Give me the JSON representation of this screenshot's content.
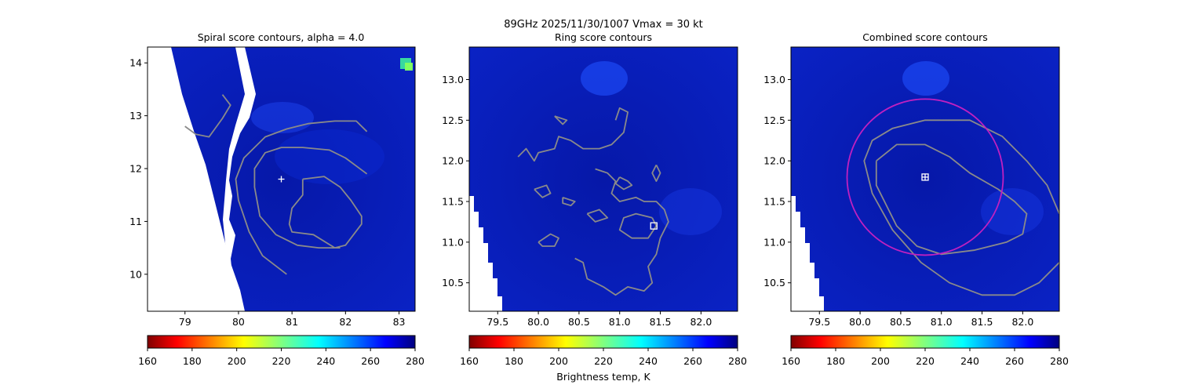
{
  "suptitle_line1": "89GHz  2025/11/30/1007    Vmax = 30 kt",
  "colorbar_label": "Brightness temp, K",
  "colors": {
    "background_field": "#0a1fc0",
    "field_dark": "#06129a",
    "field_light": "#1e4bff",
    "contour": "#8a8a8a",
    "center_marker": "#ffffff",
    "circle": "#c020c0",
    "missing": "#ffffff"
  },
  "colorbar": {
    "ticks": [
      160,
      180,
      200,
      220,
      240,
      260,
      280
    ],
    "vmin": 160,
    "vmax": 280,
    "colormap": "jet_r"
  },
  "chart_data": [
    {
      "type": "heatmap",
      "title": "Spiral score contours, alpha =  4.0",
      "xlabel": "",
      "ylabel": "",
      "xlim": [
        78.3,
        83.3
      ],
      "ylim": [
        9.3,
        14.3
      ],
      "xticks": [
        "79",
        "80",
        "81",
        "82",
        "83"
      ],
      "yticks": [
        "10",
        "11",
        "12",
        "13",
        "14"
      ],
      "center_marker": {
        "shape": "plus",
        "x": 80.8,
        "y": 11.8
      },
      "contours": [
        [
          [
            81.2,
            11.8
          ],
          [
            81.6,
            11.85
          ],
          [
            81.9,
            11.65
          ],
          [
            82.1,
            11.4
          ],
          [
            82.3,
            11.1
          ],
          [
            82.3,
            10.95
          ],
          [
            82.0,
            10.55
          ],
          [
            81.8,
            10.5
          ],
          [
            81.4,
            10.75
          ],
          [
            81.0,
            10.8
          ],
          [
            80.95,
            10.95
          ],
          [
            81.0,
            11.25
          ],
          [
            81.2,
            11.5
          ],
          [
            81.2,
            11.8
          ]
        ],
        [
          [
            82.4,
            11.9
          ],
          [
            82.0,
            12.2
          ],
          [
            81.7,
            12.35
          ],
          [
            81.2,
            12.4
          ],
          [
            80.8,
            12.4
          ],
          [
            80.5,
            12.3
          ],
          [
            80.3,
            12.0
          ],
          [
            80.3,
            11.65
          ],
          [
            80.4,
            11.1
          ],
          [
            80.7,
            10.75
          ],
          [
            81.1,
            10.55
          ],
          [
            81.5,
            10.5
          ],
          [
            81.9,
            10.5
          ]
        ],
        [
          [
            82.4,
            12.7
          ],
          [
            82.2,
            12.9
          ],
          [
            81.8,
            12.9
          ],
          [
            81.3,
            12.85
          ],
          [
            80.9,
            12.75
          ],
          [
            80.5,
            12.6
          ],
          [
            80.1,
            12.2
          ],
          [
            79.95,
            11.8
          ],
          [
            80.0,
            11.4
          ],
          [
            80.2,
            10.8
          ],
          [
            80.45,
            10.35
          ],
          [
            80.9,
            10.0
          ]
        ],
        [
          [
            79.7,
            13.4
          ],
          [
            79.85,
            13.2
          ],
          [
            79.7,
            12.95
          ],
          [
            79.45,
            12.6
          ],
          [
            79.2,
            12.65
          ],
          [
            79.0,
            12.8
          ]
        ]
      ]
    },
    {
      "type": "heatmap",
      "title": "Ring score contours",
      "xlabel": "",
      "ylabel": "",
      "xlim": [
        79.15,
        82.45
      ],
      "ylim": [
        10.15,
        13.4
      ],
      "xticks": [
        "79.5",
        "80.0",
        "80.5",
        "81.0",
        "81.5",
        "82.0"
      ],
      "yticks": [
        "10.5",
        "11.0",
        "11.5",
        "12.0",
        "12.5",
        "13.0"
      ],
      "center_marker": {
        "shape": "square",
        "x": 81.42,
        "y": 11.2
      },
      "contours": [
        [
          [
            80.95,
            12.5
          ],
          [
            81.0,
            12.65
          ],
          [
            81.1,
            12.6
          ],
          [
            81.05,
            12.35
          ],
          [
            80.9,
            12.2
          ],
          [
            80.75,
            12.15
          ],
          [
            80.55,
            12.15
          ],
          [
            80.4,
            12.25
          ],
          [
            80.25,
            12.3
          ],
          [
            80.2,
            12.15
          ],
          [
            80.0,
            12.1
          ],
          [
            79.95,
            12.0
          ],
          [
            79.85,
            12.15
          ],
          [
            79.75,
            12.05
          ]
        ],
        [
          [
            80.7,
            11.9
          ],
          [
            80.85,
            11.85
          ],
          [
            80.95,
            11.75
          ],
          [
            80.9,
            11.6
          ],
          [
            81.0,
            11.5
          ],
          [
            81.2,
            11.55
          ],
          [
            81.3,
            11.5
          ],
          [
            81.45,
            11.5
          ],
          [
            81.55,
            11.4
          ],
          [
            81.6,
            11.25
          ],
          [
            81.5,
            11.05
          ],
          [
            81.45,
            10.85
          ],
          [
            81.35,
            10.7
          ],
          [
            81.4,
            10.5
          ],
          [
            81.3,
            10.4
          ],
          [
            81.1,
            10.45
          ],
          [
            80.95,
            10.35
          ],
          [
            80.8,
            10.45
          ],
          [
            80.6,
            10.55
          ],
          [
            80.55,
            10.75
          ],
          [
            80.45,
            10.8
          ]
        ],
        [
          [
            81.4,
            11.3
          ],
          [
            81.45,
            11.2
          ],
          [
            81.35,
            11.05
          ],
          [
            81.15,
            11.05
          ],
          [
            81.0,
            11.15
          ],
          [
            81.05,
            11.3
          ],
          [
            81.2,
            11.35
          ],
          [
            81.4,
            11.3
          ]
        ],
        [
          [
            81.45,
            11.95
          ],
          [
            81.5,
            11.85
          ],
          [
            81.45,
            11.75
          ],
          [
            81.4,
            11.85
          ],
          [
            81.45,
            11.95
          ]
        ],
        [
          [
            81.0,
            11.8
          ],
          [
            81.1,
            11.75
          ],
          [
            81.15,
            11.7
          ],
          [
            81.05,
            11.65
          ],
          [
            80.95,
            11.72
          ],
          [
            81.0,
            11.8
          ]
        ],
        [
          [
            79.95,
            11.65
          ],
          [
            80.1,
            11.7
          ],
          [
            80.15,
            11.6
          ],
          [
            80.05,
            11.55
          ],
          [
            79.95,
            11.65
          ]
        ],
        [
          [
            80.0,
            11.0
          ],
          [
            80.15,
            11.1
          ],
          [
            80.25,
            11.05
          ],
          [
            80.2,
            10.95
          ],
          [
            80.05,
            10.95
          ],
          [
            80.0,
            11.0
          ]
        ],
        [
          [
            80.3,
            11.55
          ],
          [
            80.45,
            11.5
          ],
          [
            80.4,
            11.45
          ],
          [
            80.3,
            11.48
          ],
          [
            80.3,
            11.55
          ]
        ],
        [
          [
            80.6,
            11.35
          ],
          [
            80.75,
            11.4
          ],
          [
            80.85,
            11.3
          ],
          [
            80.7,
            11.25
          ],
          [
            80.6,
            11.35
          ]
        ],
        [
          [
            80.2,
            12.55
          ],
          [
            80.35,
            12.5
          ],
          [
            80.3,
            12.45
          ],
          [
            80.2,
            12.55
          ]
        ]
      ]
    },
    {
      "type": "heatmap",
      "title": "Combined score contours",
      "xlabel": "",
      "ylabel": "",
      "xlim": [
        79.15,
        82.45
      ],
      "ylim": [
        10.15,
        13.4
      ],
      "xticks": [
        "79.5",
        "80.0",
        "80.5",
        "81.0",
        "81.5",
        "82.0"
      ],
      "yticks": [
        "10.5",
        "11.0",
        "11.5",
        "12.0",
        "12.5",
        "13.0"
      ],
      "center_marker": {
        "shape": "boxed-plus",
        "x": 80.8,
        "y": 11.8
      },
      "circle": {
        "cx": 80.8,
        "cy": 11.8,
        "r": 0.96
      },
      "contours": [
        [
          [
            80.2,
            12.0
          ],
          [
            80.45,
            12.2
          ],
          [
            80.8,
            12.2
          ],
          [
            81.1,
            12.05
          ],
          [
            81.35,
            11.85
          ],
          [
            81.7,
            11.65
          ],
          [
            81.9,
            11.5
          ],
          [
            82.05,
            11.35
          ],
          [
            82.0,
            11.1
          ],
          [
            81.8,
            11.0
          ],
          [
            81.4,
            10.9
          ],
          [
            81.0,
            10.85
          ],
          [
            80.7,
            10.95
          ],
          [
            80.45,
            11.2
          ],
          [
            80.3,
            11.5
          ],
          [
            80.2,
            11.7
          ],
          [
            80.2,
            12.0
          ]
        ],
        [
          [
            82.45,
            11.35
          ],
          [
            82.3,
            11.7
          ],
          [
            82.05,
            12.0
          ],
          [
            81.75,
            12.3
          ],
          [
            81.35,
            12.5
          ],
          [
            80.8,
            12.5
          ],
          [
            80.4,
            12.4
          ],
          [
            80.15,
            12.25
          ],
          [
            80.05,
            12.0
          ],
          [
            80.15,
            11.6
          ],
          [
            80.4,
            11.15
          ],
          [
            80.75,
            10.75
          ],
          [
            81.1,
            10.5
          ],
          [
            81.5,
            10.35
          ],
          [
            81.9,
            10.35
          ],
          [
            82.2,
            10.5
          ],
          [
            82.45,
            10.75
          ]
        ]
      ]
    }
  ]
}
